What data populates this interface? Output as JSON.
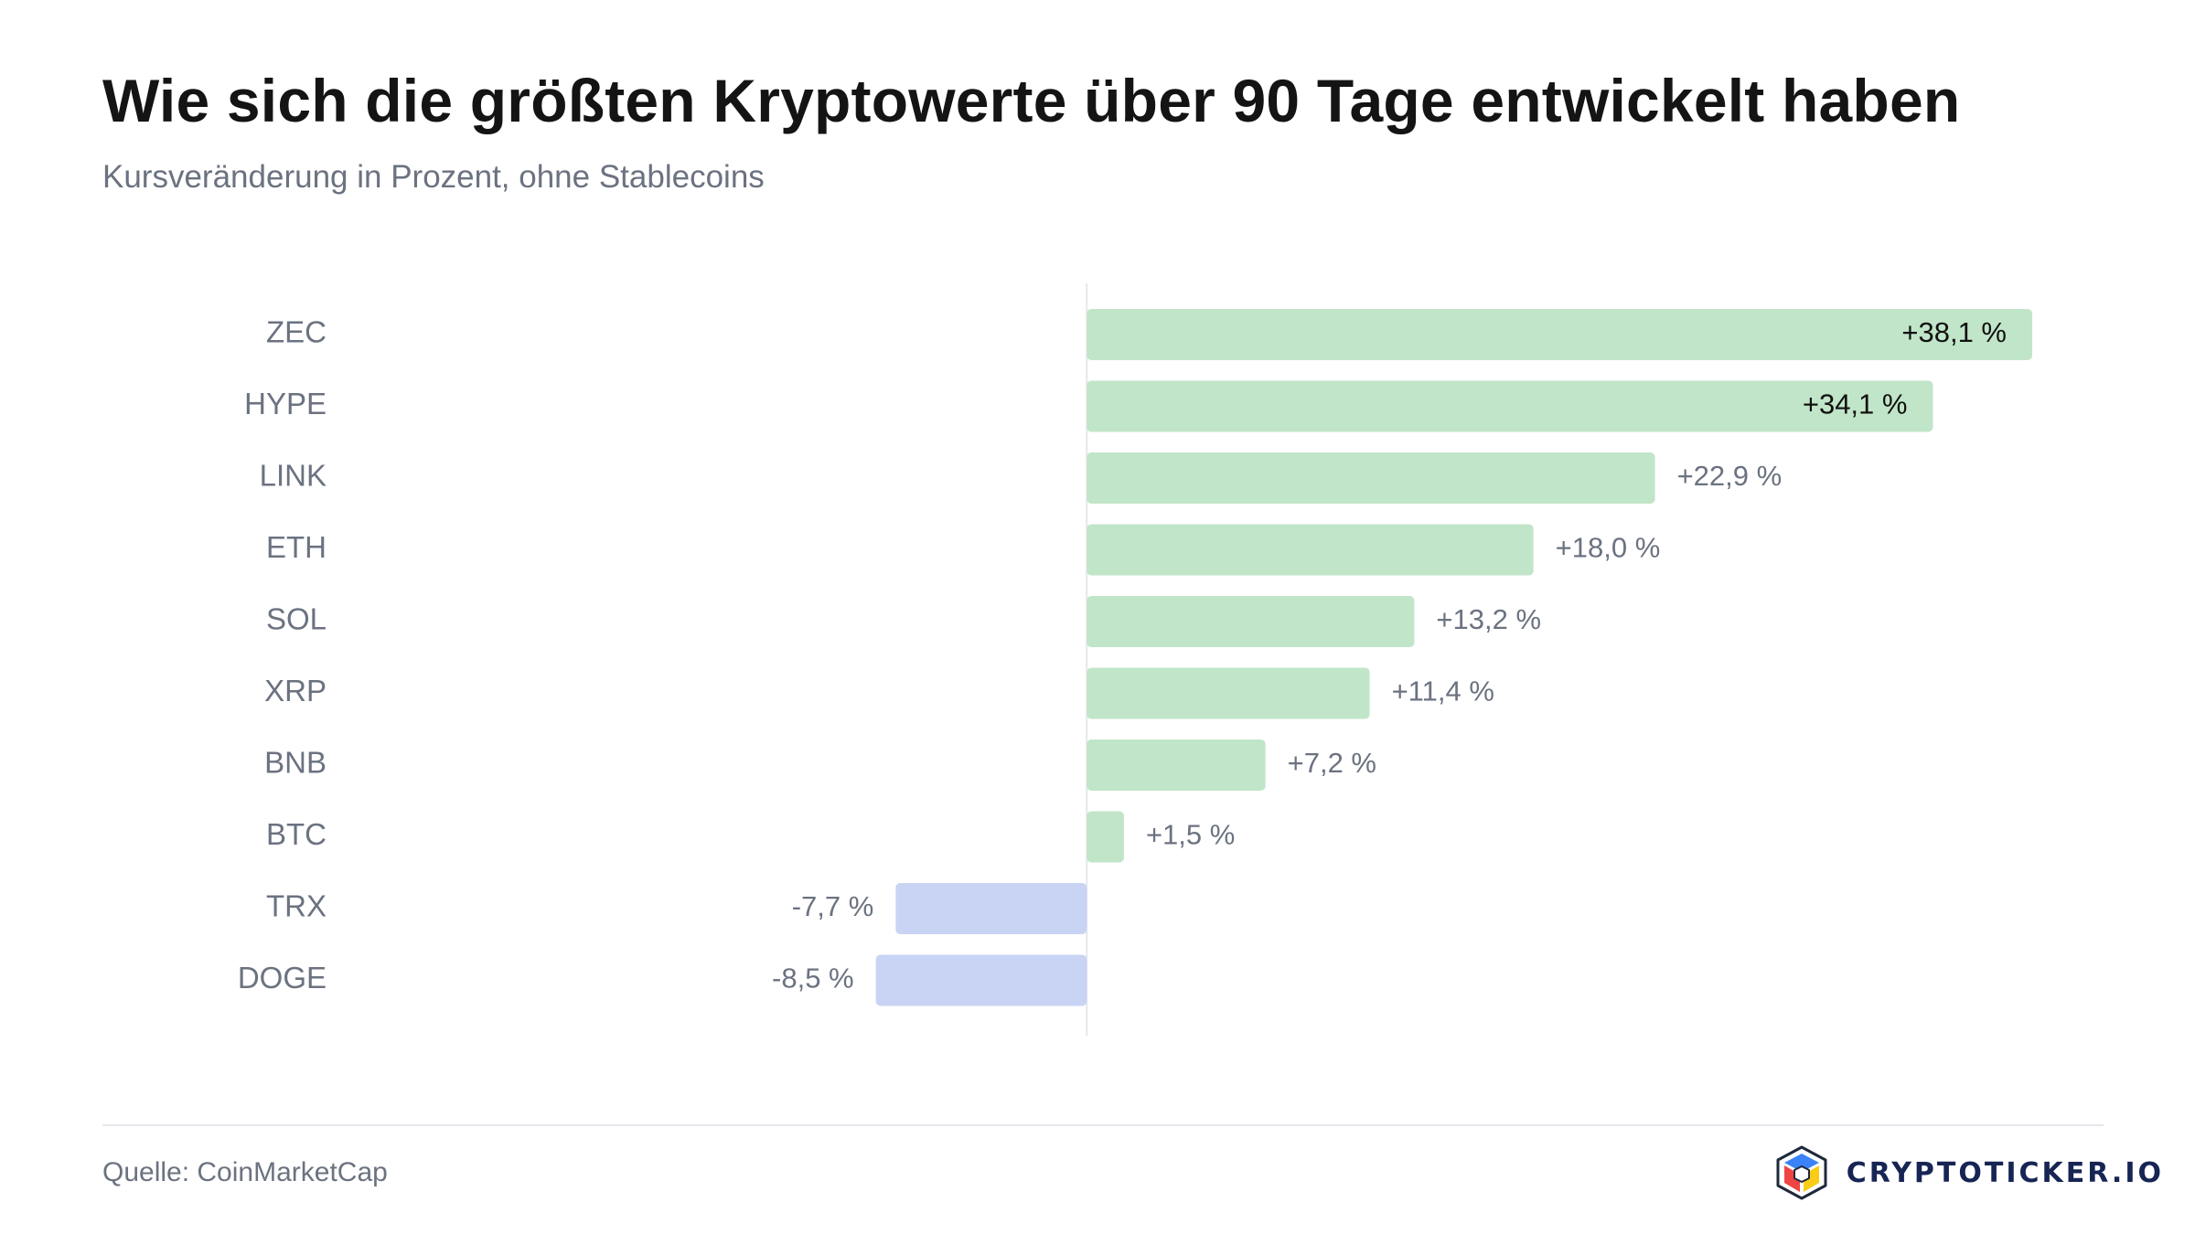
{
  "header": {
    "title": "Wie sich die größten Kryptowerte über 90 Tage entwickelt haben",
    "subtitle": "Kursveränderung in Prozent, ohne Stablecoins"
  },
  "footer": {
    "source": "Quelle: CoinMarketCap",
    "brand": "CRYPTOTICKER.IO"
  },
  "colors": {
    "positive": "#c1e5c8",
    "negative": "#c9d4f4",
    "category_label": "#6b7280",
    "value_label_outside": "#6b7280",
    "value_label_inside": "#111111",
    "baseline": "#e5e7eb"
  },
  "icons": {
    "brand_logo": "cube-logo-icon"
  },
  "chart_data": {
    "type": "bar",
    "orientation": "horizontal",
    "title": "Wie sich die größten Kryptowerte über 90 Tage entwickelt haben",
    "subtitle": "Kursveränderung in Prozent, ohne Stablecoins",
    "categories": [
      "ZEC",
      "HYPE",
      "LINK",
      "ETH",
      "SOL",
      "XRP",
      "BNB",
      "BTC",
      "TRX",
      "DOGE"
    ],
    "values": [
      38.1,
      34.1,
      22.9,
      18.0,
      13.2,
      11.4,
      7.2,
      1.5,
      -7.7,
      -8.5
    ],
    "labels": [
      "+38,1 %",
      "+34,1 %",
      "+22,9 %",
      "+18,0 %",
      "+13,2 %",
      "+11,4 %",
      "+7,2 %",
      "+1,5 %",
      "-7,7 %",
      "-8,5 %"
    ],
    "xlim": [
      -29.2,
      38.1
    ],
    "grid": false,
    "legend": "none"
  }
}
